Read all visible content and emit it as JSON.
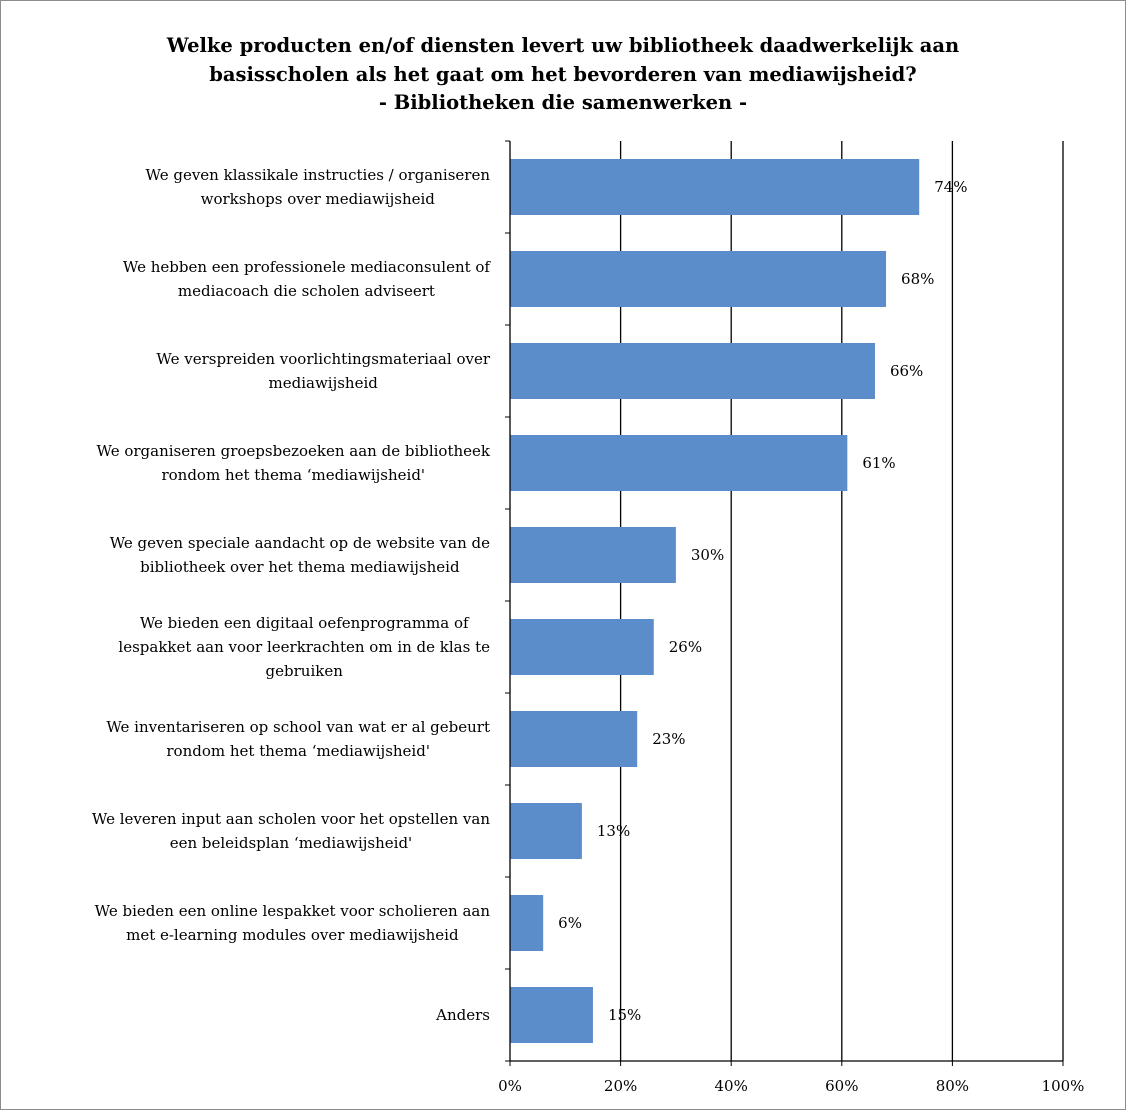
{
  "chart_data": {
    "type": "bar",
    "orientation": "horizontal",
    "title_lines": [
      "Welke producten en/of diensten levert uw bibliotheek  daadwerkelijk aan",
      "basisscholen als het gaat om het bevorderen van mediawijsheid?",
      "- Bibliotheken die samenwerken -"
    ],
    "categories": [
      [
        "We geven klassikale instructies / organiseren",
        "workshops over mediawijsheid"
      ],
      [
        "We hebben een professionele mediaconsulent of",
        "mediacoach die scholen adviseert"
      ],
      [
        "We verspreiden voorlichtingsmateriaal over",
        "mediawijsheid"
      ],
      [
        "We organiseren groepsbezoeken aan de bibliotheek",
        "rondom het thema ‘mediawijsheid'"
      ],
      [
        "We geven speciale aandacht op de website van de",
        "bibliotheek over het thema mediawijsheid"
      ],
      [
        "We bieden een digitaal oefenprogramma of",
        "lespakket aan voor leerkrachten om in de klas te",
        "gebruiken"
      ],
      [
        "We inventariseren op school van wat er al gebeurt",
        "rondom het thema ‘mediawijsheid'"
      ],
      [
        "We leveren input aan scholen voor het opstellen van",
        "een beleidsplan ‘mediawijsheid'"
      ],
      [
        "We bieden een online lespakket voor scholieren aan",
        "met e-learning modules over mediawijsheid"
      ],
      [
        "Anders"
      ]
    ],
    "values": [
      74,
      68,
      66,
      61,
      30,
      26,
      23,
      13,
      6,
      15
    ],
    "data_labels": [
      "74%",
      "68%",
      "66%",
      "61%",
      "30%",
      "26%",
      "23%",
      "13%",
      "6%",
      "15%"
    ],
    "xlim": [
      0,
      100
    ],
    "xticks": [
      0,
      20,
      40,
      60,
      80,
      100
    ],
    "xtick_labels": [
      "0%",
      "20%",
      "40%",
      "60%",
      "80%",
      "100%"
    ],
    "gridlines": true,
    "bar_color": "#5b8dcb"
  }
}
